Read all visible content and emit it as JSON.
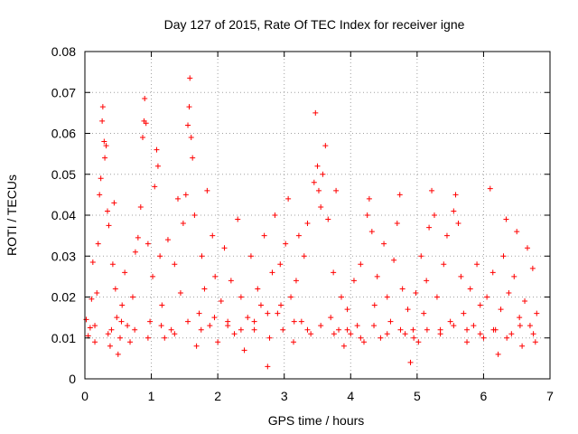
{
  "chart_data": {
    "type": "scatter",
    "title": "Day 127 of 2015, Rate Of TEC Index for receiver igne",
    "xlabel": "GPS time / hours",
    "ylabel": "ROTI / TECUs",
    "xlim": [
      0,
      7
    ],
    "ylim": [
      0,
      0.08
    ],
    "xticks": [
      "0",
      "1",
      "2",
      "3",
      "4",
      "5",
      "6",
      "7"
    ],
    "yticks": [
      "0",
      "0.01",
      "0.02",
      "0.03",
      "0.04",
      "0.05",
      "0.06",
      "0.07",
      "0.08"
    ],
    "grid": true,
    "marker": "+",
    "color": "#ff0000",
    "series": [
      {
        "name": "ROTI",
        "points": [
          [
            0.02,
            0.0145
          ],
          [
            0.05,
            0.0105
          ],
          [
            0.08,
            0.0125
          ],
          [
            0.1,
            0.0195
          ],
          [
            0.12,
            0.0285
          ],
          [
            0.15,
            0.009
          ],
          [
            0.18,
            0.021
          ],
          [
            0.2,
            0.033
          ],
          [
            0.22,
            0.045
          ],
          [
            0.24,
            0.049
          ],
          [
            0.26,
            0.063
          ],
          [
            0.27,
            0.0665
          ],
          [
            0.29,
            0.058
          ],
          [
            0.3,
            0.054
          ],
          [
            0.32,
            0.057
          ],
          [
            0.34,
            0.041
          ],
          [
            0.36,
            0.0375
          ],
          [
            0.38,
            0.008
          ],
          [
            0.4,
            0.012
          ],
          [
            0.42,
            0.028
          ],
          [
            0.44,
            0.043
          ],
          [
            0.46,
            0.022
          ],
          [
            0.48,
            0.015
          ],
          [
            0.5,
            0.006
          ],
          [
            0.53,
            0.01
          ],
          [
            0.56,
            0.018
          ],
          [
            0.6,
            0.026
          ],
          [
            0.64,
            0.013
          ],
          [
            0.68,
            0.009
          ],
          [
            0.72,
            0.02
          ],
          [
            0.76,
            0.031
          ],
          [
            0.8,
            0.0345
          ],
          [
            0.84,
            0.042
          ],
          [
            0.87,
            0.059
          ],
          [
            0.89,
            0.063
          ],
          [
            0.9,
            0.0685
          ],
          [
            0.92,
            0.0625
          ],
          [
            0.95,
            0.033
          ],
          [
            0.98,
            0.014
          ],
          [
            1.02,
            0.025
          ],
          [
            1.05,
            0.047
          ],
          [
            1.08,
            0.056
          ],
          [
            1.1,
            0.052
          ],
          [
            1.13,
            0.03
          ],
          [
            1.16,
            0.018
          ],
          [
            1.2,
            0.01
          ],
          [
            1.25,
            0.034
          ],
          [
            1.3,
            0.012
          ],
          [
            1.35,
            0.028
          ],
          [
            1.4,
            0.044
          ],
          [
            1.44,
            0.021
          ],
          [
            1.48,
            0.038
          ],
          [
            1.52,
            0.045
          ],
          [
            1.55,
            0.062
          ],
          [
            1.57,
            0.0665
          ],
          [
            1.58,
            0.0735
          ],
          [
            1.6,
            0.059
          ],
          [
            1.62,
            0.054
          ],
          [
            1.65,
            0.04
          ],
          [
            1.68,
            0.008
          ],
          [
            1.72,
            0.016
          ],
          [
            1.76,
            0.03
          ],
          [
            1.8,
            0.022
          ],
          [
            1.84,
            0.046
          ],
          [
            1.88,
            0.013
          ],
          [
            1.92,
            0.035
          ],
          [
            1.96,
            0.025
          ],
          [
            2.0,
            0.009
          ],
          [
            2.05,
            0.019
          ],
          [
            2.1,
            0.032
          ],
          [
            2.15,
            0.014
          ],
          [
            2.2,
            0.024
          ],
          [
            2.25,
            0.011
          ],
          [
            2.3,
            0.039
          ],
          [
            2.35,
            0.02
          ],
          [
            2.4,
            0.007
          ],
          [
            2.45,
            0.015
          ],
          [
            2.5,
            0.03
          ],
          [
            2.55,
            0.012
          ],
          [
            2.6,
            0.022
          ],
          [
            2.65,
            0.018
          ],
          [
            2.7,
            0.035
          ],
          [
            2.75,
            0.003
          ],
          [
            2.78,
            0.01
          ],
          [
            2.82,
            0.026
          ],
          [
            2.86,
            0.04
          ],
          [
            2.9,
            0.016
          ],
          [
            2.94,
            0.028
          ],
          [
            2.98,
            0.012
          ],
          [
            3.02,
            0.033
          ],
          [
            3.06,
            0.044
          ],
          [
            3.1,
            0.02
          ],
          [
            3.14,
            0.009
          ],
          [
            3.18,
            0.024
          ],
          [
            3.22,
            0.035
          ],
          [
            3.26,
            0.014
          ],
          [
            3.3,
            0.03
          ],
          [
            3.35,
            0.038
          ],
          [
            3.4,
            0.011
          ],
          [
            3.45,
            0.048
          ],
          [
            3.47,
            0.065
          ],
          [
            3.5,
            0.052
          ],
          [
            3.52,
            0.046
          ],
          [
            3.55,
            0.042
          ],
          [
            3.58,
            0.05
          ],
          [
            3.62,
            0.057
          ],
          [
            3.66,
            0.039
          ],
          [
            3.7,
            0.015
          ],
          [
            3.74,
            0.026
          ],
          [
            3.78,
            0.046
          ],
          [
            3.82,
            0.012
          ],
          [
            3.86,
            0.02
          ],
          [
            3.9,
            0.008
          ],
          [
            3.95,
            0.017
          ],
          [
            4.0,
            0.011
          ],
          [
            4.05,
            0.024
          ],
          [
            4.1,
            0.013
          ],
          [
            4.15,
            0.028
          ],
          [
            4.2,
            0.009
          ],
          [
            4.25,
            0.04
          ],
          [
            4.28,
            0.044
          ],
          [
            4.32,
            0.036
          ],
          [
            4.36,
            0.018
          ],
          [
            4.4,
            0.025
          ],
          [
            4.45,
            0.01
          ],
          [
            4.5,
            0.033
          ],
          [
            4.55,
            0.02
          ],
          [
            4.6,
            0.014
          ],
          [
            4.65,
            0.029
          ],
          [
            4.7,
            0.038
          ],
          [
            4.74,
            0.045
          ],
          [
            4.78,
            0.022
          ],
          [
            4.82,
            0.011
          ],
          [
            4.86,
            0.017
          ],
          [
            4.9,
            0.004
          ],
          [
            4.94,
            0.012
          ],
          [
            4.98,
            0.021
          ],
          [
            5.02,
            0.009
          ],
          [
            5.06,
            0.03
          ],
          [
            5.1,
            0.016
          ],
          [
            5.14,
            0.024
          ],
          [
            5.18,
            0.037
          ],
          [
            5.22,
            0.046
          ],
          [
            5.26,
            0.04
          ],
          [
            5.3,
            0.02
          ],
          [
            5.35,
            0.012
          ],
          [
            5.4,
            0.028
          ],
          [
            5.45,
            0.035
          ],
          [
            5.5,
            0.014
          ],
          [
            5.55,
            0.041
          ],
          [
            5.58,
            0.045
          ],
          [
            5.62,
            0.038
          ],
          [
            5.66,
            0.025
          ],
          [
            5.7,
            0.016
          ],
          [
            5.75,
            0.009
          ],
          [
            5.8,
            0.022
          ],
          [
            5.85,
            0.013
          ],
          [
            5.9,
            0.028
          ],
          [
            5.95,
            0.018
          ],
          [
            6.0,
            0.01
          ],
          [
            6.05,
            0.02
          ],
          [
            6.1,
            0.0465
          ],
          [
            6.14,
            0.026
          ],
          [
            6.18,
            0.012
          ],
          [
            6.22,
            0.006
          ],
          [
            6.26,
            0.017
          ],
          [
            6.3,
            0.03
          ],
          [
            6.34,
            0.039
          ],
          [
            6.38,
            0.021
          ],
          [
            6.42,
            0.011
          ],
          [
            6.46,
            0.025
          ],
          [
            6.5,
            0.036
          ],
          [
            6.54,
            0.015
          ],
          [
            6.58,
            0.008
          ],
          [
            6.62,
            0.019
          ],
          [
            6.66,
            0.032
          ],
          [
            6.7,
            0.013
          ],
          [
            6.74,
            0.027
          ],
          [
            6.78,
            0.009
          ],
          [
            6.8,
            0.016
          ],
          [
            0.15,
            0.013
          ],
          [
            0.35,
            0.011
          ],
          [
            0.55,
            0.014
          ],
          [
            0.75,
            0.012
          ],
          [
            0.95,
            0.01
          ],
          [
            1.15,
            0.013
          ],
          [
            1.35,
            0.011
          ],
          [
            1.55,
            0.014
          ],
          [
            1.75,
            0.012
          ],
          [
            1.95,
            0.015
          ],
          [
            2.15,
            0.013
          ],
          [
            2.35,
            0.012
          ],
          [
            2.55,
            0.014
          ],
          [
            2.75,
            0.016
          ],
          [
            2.95,
            0.018
          ],
          [
            3.15,
            0.014
          ],
          [
            3.35,
            0.012
          ],
          [
            3.55,
            0.013
          ],
          [
            3.75,
            0.011
          ],
          [
            3.95,
            0.012
          ],
          [
            4.15,
            0.01
          ],
          [
            4.35,
            0.013
          ],
          [
            4.55,
            0.011
          ],
          [
            4.75,
            0.012
          ],
          [
            4.95,
            0.01
          ],
          [
            5.15,
            0.012
          ],
          [
            5.35,
            0.011
          ],
          [
            5.55,
            0.013
          ],
          [
            5.75,
            0.012
          ],
          [
            5.95,
            0.011
          ],
          [
            6.15,
            0.012
          ],
          [
            6.35,
            0.01
          ],
          [
            6.55,
            0.013
          ],
          [
            6.75,
            0.011
          ]
        ]
      }
    ]
  }
}
